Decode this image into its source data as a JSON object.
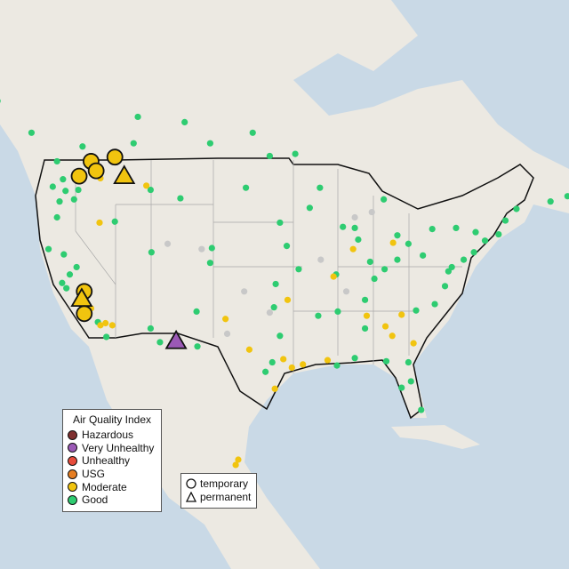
{
  "legend": {
    "title": "Air Quality Index",
    "categories": [
      {
        "label": "Hazardous",
        "color": "#7e2f2f"
      },
      {
        "label": "Very Unhealthy",
        "color": "#9b59b6"
      },
      {
        "label": "Unhealthy",
        "color": "#e74c3c"
      },
      {
        "label": "USG",
        "color": "#e67e22"
      },
      {
        "label": "Moderate",
        "color": "#f1c40f"
      },
      {
        "label": "Good",
        "color": "#2ecc71"
      }
    ],
    "types": [
      {
        "label": "temporary",
        "shape": "circle"
      },
      {
        "label": "permanent",
        "shape": "triangle"
      }
    ]
  },
  "colors": {
    "ocean": "#c9d9e6",
    "land": "#ece9e2",
    "border": "#111111",
    "state_lines": "#a8a8a8",
    "no_data": "#c8c8c8"
  },
  "large_markers": [
    {
      "lon": -119.0,
      "lat": 49.3,
      "type": "temporary",
      "category": "Moderate"
    },
    {
      "lon": -118.4,
      "lat": 48.4,
      "type": "temporary",
      "category": "Moderate"
    },
    {
      "lon": -120.4,
      "lat": 47.9,
      "type": "temporary",
      "category": "Moderate"
    },
    {
      "lon": -116.2,
      "lat": 49.7,
      "type": "temporary",
      "category": "Moderate"
    },
    {
      "lon": -115.1,
      "lat": 47.9,
      "type": "permanent",
      "category": "Moderate"
    },
    {
      "lon": -119.8,
      "lat": 37.0,
      "type": "temporary",
      "category": "Moderate"
    },
    {
      "lon": -120.1,
      "lat": 36.3,
      "type": "permanent",
      "category": "Moderate"
    },
    {
      "lon": -119.8,
      "lat": 34.9,
      "type": "temporary",
      "category": "Moderate"
    },
    {
      "lon": -109.0,
      "lat": 32.3,
      "type": "permanent",
      "category": "Very Unhealthy"
    }
  ],
  "monitors": {
    "Good": [
      [
        -122.3,
        47.6
      ],
      [
        -122.7,
        45.5
      ],
      [
        -123,
        44
      ],
      [
        -122,
        46.5
      ],
      [
        -121,
        45.7
      ],
      [
        -120.5,
        46.6
      ],
      [
        -123.5,
        46.9
      ],
      [
        -124,
        41
      ],
      [
        -122.4,
        37.8
      ],
      [
        -121.5,
        38.6
      ],
      [
        -121.9,
        37.3
      ],
      [
        -120.7,
        39.3
      ],
      [
        -122.2,
        40.5
      ],
      [
        -118.2,
        34.1
      ],
      [
        -117.2,
        32.7
      ],
      [
        -111.9,
        40.7
      ],
      [
        -112,
        33.5
      ],
      [
        -110.9,
        32.2
      ],
      [
        -106.6,
        35.1
      ],
      [
        -105,
        39.7
      ],
      [
        -104.8,
        41.1
      ],
      [
        -108.5,
        45.8
      ],
      [
        -112,
        46.6
      ],
      [
        -116.2,
        43.6
      ],
      [
        -100.8,
        46.8
      ],
      [
        -96.8,
        43.5
      ],
      [
        -96,
        41.3
      ],
      [
        -97.5,
        35.5
      ],
      [
        -97.3,
        37.7
      ],
      [
        -94.6,
        39.1
      ],
      [
        -93.3,
        44.9
      ],
      [
        -90.2,
        38.6
      ],
      [
        -87.6,
        41.9
      ],
      [
        -88,
        43
      ],
      [
        -86.2,
        39.8
      ],
      [
        -83,
        42.3
      ],
      [
        -83,
        40
      ],
      [
        -81.7,
        41.5
      ],
      [
        -80,
        40.4
      ],
      [
        -84.5,
        39.1
      ],
      [
        -85.7,
        38.2
      ],
      [
        -86.8,
        36.2
      ],
      [
        -90,
        35.1
      ],
      [
        -92.3,
        34.7
      ],
      [
        -90.1,
        30
      ],
      [
        -96.8,
        32.8
      ],
      [
        -98.5,
        29.4
      ],
      [
        -97.7,
        30.3
      ],
      [
        -106.5,
        31.8
      ],
      [
        -80.8,
        35.2
      ],
      [
        -78.6,
        35.8
      ],
      [
        -77.4,
        37.5
      ],
      [
        -77,
        38.9
      ],
      [
        -76.6,
        39.3
      ],
      [
        -75.2,
        40
      ],
      [
        -74,
        40.7
      ],
      [
        -73.8,
        42.6
      ],
      [
        -71.1,
        42.4
      ],
      [
        -72.7,
        41.8
      ],
      [
        -70.3,
        43.7
      ],
      [
        -69,
        44.8
      ],
      [
        -76.1,
        43
      ],
      [
        -78.9,
        42.9
      ],
      [
        -81.4,
        28.5
      ],
      [
        -82.5,
        27.9
      ],
      [
        -80.2,
        25.8
      ],
      [
        -81.7,
        30.3
      ],
      [
        -84.3,
        30.4
      ],
      [
        -86.8,
        33.5
      ],
      [
        -88,
        30.7
      ],
      [
        -89.4,
        43.1
      ],
      [
        -92.1,
        46.8
      ],
      [
        -84.6,
        45.7
      ],
      [
        -98,
        49.8
      ],
      [
        -105,
        51
      ],
      [
        -113.5,
        53.5
      ],
      [
        -114,
        51
      ],
      [
        -120,
        50.7
      ],
      [
        -123,
        49.3
      ],
      [
        -126,
        52
      ],
      [
        -130,
        55
      ],
      [
        -108,
        53
      ],
      [
        -100,
        52
      ],
      [
        -95,
        50
      ],
      [
        -65,
        45.5
      ],
      [
        -63,
        46
      ]
    ],
    "Moderate": [
      [
        -117.3,
        34
      ],
      [
        -117.9,
        33.8
      ],
      [
        -116.5,
        33.8
      ],
      [
        -119,
        35.4
      ],
      [
        -95.4,
        29.8
      ],
      [
        -94.1,
        30.1
      ],
      [
        -91.2,
        30.5
      ],
      [
        -84.4,
        33.7
      ],
      [
        -83.6,
        32.8
      ],
      [
        -81.1,
        32.1
      ],
      [
        -82.5,
        34.8
      ],
      [
        -86.6,
        34.7
      ],
      [
        -96.4,
        30.6
      ],
      [
        -97.4,
        27.8
      ],
      [
        -100.4,
        31.5
      ],
      [
        -103.2,
        34.4
      ],
      [
        -95.9,
        36.2
      ],
      [
        -102,
        20.6
      ],
      [
        -101.7,
        21.1
      ],
      [
        -90.5,
        38.4
      ],
      [
        -88.2,
        41
      ],
      [
        -83.5,
        41.6
      ],
      [
        -112.5,
        47
      ],
      [
        -118,
        43.5
      ],
      [
        -117.9,
        47.7
      ]
    ],
    "NoData": [
      [
        -110,
        41.5
      ],
      [
        -106,
        41
      ],
      [
        -101,
        37
      ],
      [
        -98,
        35
      ],
      [
        -103,
        33
      ],
      [
        -88,
        44
      ],
      [
        -86,
        44.5
      ],
      [
        -92,
        40
      ],
      [
        -89,
        37
      ]
    ]
  }
}
